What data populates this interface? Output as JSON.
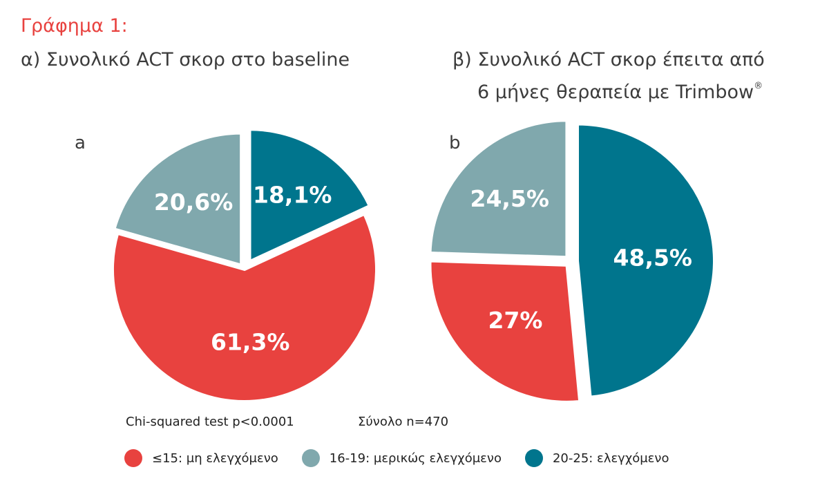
{
  "figure_title": "Γράφημα 1:",
  "colors": {
    "uncontrolled": "#e8423f",
    "partial": "#80a8ad",
    "controlled": "#00758d"
  },
  "chart_data": [
    {
      "type": "pie",
      "letter": "a",
      "title": "α) Συνολικό ACT σκορ στο baseline",
      "slices": [
        {
          "category": "controlled",
          "value": 18.1,
          "label": "18,1%"
        },
        {
          "category": "uncontrolled",
          "value": 61.3,
          "label": "61,3%"
        },
        {
          "category": "partial",
          "value": 20.6,
          "label": "20,6%"
        }
      ]
    },
    {
      "type": "pie",
      "letter": "b",
      "title_line1": "β) Συνολικό ACT σκορ έπειτα από",
      "title_line2": "6 μήνες θεραπεία με Trimbow",
      "title_sup": "®",
      "slices": [
        {
          "category": "controlled",
          "value": 48.5,
          "label": "48,5%"
        },
        {
          "category": "uncontrolled",
          "value": 27,
          "label": "27%"
        },
        {
          "category": "partial",
          "value": 24.5,
          "label": "24,5%"
        }
      ]
    }
  ],
  "footnotes": {
    "test": "Chi-squared test p<0.0001",
    "total": "Σύνολο n=470"
  },
  "legend": [
    {
      "category": "uncontrolled",
      "label": "≤15: μη ελεγχόμενο"
    },
    {
      "category": "partial",
      "label": "16-19: μερικώς ελεγχόμενο"
    },
    {
      "category": "controlled",
      "label": "20-25: ελεγχόμενο"
    }
  ]
}
